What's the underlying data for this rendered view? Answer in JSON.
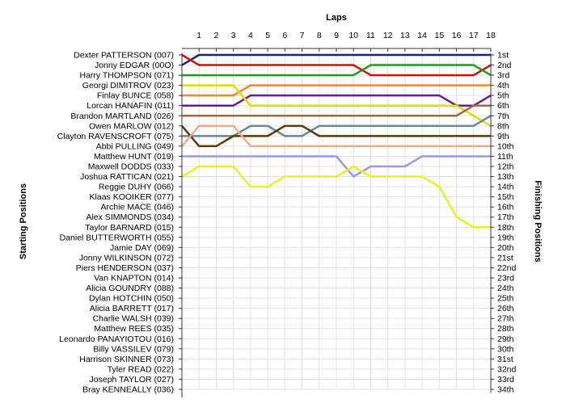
{
  "chart_data": {
    "type": "line",
    "title": "",
    "x_title": "Laps",
    "left_axis_title": "Starting Positions",
    "right_axis_title": "Finishing Positions",
    "laps": [
      1,
      2,
      3,
      4,
      5,
      6,
      7,
      8,
      9,
      10,
      11,
      12,
      13,
      14,
      15,
      16,
      17,
      18
    ],
    "start_labels": [
      "Dexter PATTERSON (007)",
      "Jonny EDGAR (00O)",
      "Harry THOMPSON (071)",
      "Georgi DIMITROV (023)",
      "Finlay BUNCE (058)",
      "Lorcan HANAFIN (011)",
      "Brandon MARTLAND (026)",
      "Owen MARLOW (012)",
      "Clayton RAVENSCROFT (075)",
      "Abbi PULLING (049)",
      "Matthew HUNT (019)",
      "Maxwell DODDS (033)",
      "Joshua RATTICAN (021)",
      "Reggie DUHY (066)",
      "Klaas KOOIKER (077)",
      "Archie MACE (046)",
      "Alex SIMMONDS (034)",
      "Taylor BARNARD (015)",
      "Daniel BUTTERWORTH (055)",
      "Jamie DAY (069)",
      "Jonny WILKINSON (072)",
      "Piers HENDERSON (037)",
      "Van KNAPTON (014)",
      "Alicia GOUNDRY (088)",
      "Dylan HOTCHIN (050)",
      "Alicia BARRETT (017)",
      "Charlie WALSH (039)",
      "Matthew REES (035)",
      "Leonardo PANAYIOTOU (016)",
      "Billy VASSILEV (079)",
      "Harrison SKINNER (073)",
      "Tyler READ (022)",
      "Joseph TAYLOR (027)",
      "Bray KENNEALLY (036)"
    ],
    "finish_labels": [
      "1st",
      "2nd",
      "3rd",
      "4th",
      "5th",
      "6th",
      "7th",
      "8th",
      "9th",
      "10th",
      "11th",
      "12th",
      "13th",
      "14th",
      "15th",
      "16th",
      "17th",
      "18th",
      "19th",
      "20th",
      "21st",
      "22nd",
      "23rd",
      "24th",
      "25th",
      "26th",
      "27th",
      "28th",
      "29th",
      "30th",
      "31st",
      "32nd",
      "33rd",
      "34th"
    ],
    "y_range": [
      1,
      34
    ],
    "x_range": [
      0,
      18
    ],
    "grid": true,
    "series": [
      {
        "color": "#1a237e",
        "start": 2,
        "positions": [
          1,
          1,
          1,
          1,
          1,
          1,
          1,
          1,
          1,
          1,
          1,
          1,
          1,
          1,
          1,
          1,
          1,
          1
        ],
        "finish": 1
      },
      {
        "color": "#cc1111",
        "start": 1,
        "positions": [
          2,
          2,
          2,
          2,
          2,
          2,
          2,
          2,
          2,
          2,
          3,
          3,
          3,
          3,
          3,
          3,
          3,
          2
        ],
        "finish": 2
      },
      {
        "color": "#229922",
        "start": 3,
        "positions": [
          3,
          3,
          3,
          3,
          3,
          3,
          3,
          3,
          3,
          3,
          2,
          2,
          2,
          2,
          2,
          2,
          2,
          3
        ],
        "finish": 3
      },
      {
        "color": "#ee8833",
        "start": 5,
        "positions": [
          5,
          5,
          5,
          4,
          4,
          4,
          4,
          4,
          4,
          4,
          4,
          4,
          4,
          4,
          4,
          4,
          4,
          4
        ],
        "finish": 4
      },
      {
        "color": "#6a1b9a",
        "start": 6,
        "positions": [
          6,
          6,
          6,
          5,
          5,
          5,
          5,
          5,
          5,
          5,
          5,
          5,
          5,
          5,
          5,
          6,
          6,
          5
        ],
        "finish": 5
      },
      {
        "color": "#dddd00",
        "start": 4,
        "positions": [
          4,
          4,
          4,
          6,
          6,
          6,
          6,
          6,
          6,
          6,
          6,
          6,
          6,
          6,
          6,
          6,
          7,
          8
        ],
        "finish": 8
      },
      {
        "color": "#aa6633",
        "start": 7,
        "positions": [
          7,
          7,
          7,
          7,
          7,
          7,
          7,
          7,
          7,
          7,
          7,
          7,
          7,
          7,
          7,
          7,
          6,
          6
        ],
        "finish": 6
      },
      {
        "color": "#668899",
        "start": 9,
        "positions": [
          9,
          9,
          9,
          8,
          8,
          9,
          9,
          8,
          8,
          8,
          8,
          8,
          8,
          8,
          8,
          8,
          8,
          7
        ],
        "finish": 7
      },
      {
        "color": "#5c3a00",
        "start": 8,
        "positions": [
          10,
          10,
          9,
          9,
          9,
          8,
          8,
          9,
          9,
          9,
          9,
          9,
          9,
          9,
          9,
          9,
          9,
          9
        ],
        "finish": 9
      },
      {
        "color": "#efaa88",
        "start": 10,
        "positions": [
          8,
          8,
          8,
          10,
          10,
          10,
          10,
          10,
          10,
          10,
          10,
          10,
          10,
          10,
          10,
          10,
          10,
          10
        ],
        "finish": 10
      },
      {
        "color": "#9999dd",
        "start": 11,
        "positions": [
          11,
          11,
          11,
          11,
          11,
          11,
          11,
          11,
          11,
          13,
          12,
          12,
          12,
          11,
          11,
          11,
          11,
          11
        ],
        "finish": 11
      },
      {
        "color": "#eeee22",
        "start": 13,
        "positions": [
          12,
          12,
          12,
          14,
          14,
          13,
          13,
          13,
          13,
          12,
          13,
          13,
          13,
          13,
          14,
          17,
          18,
          18
        ],
        "finish": 18
      }
    ]
  }
}
